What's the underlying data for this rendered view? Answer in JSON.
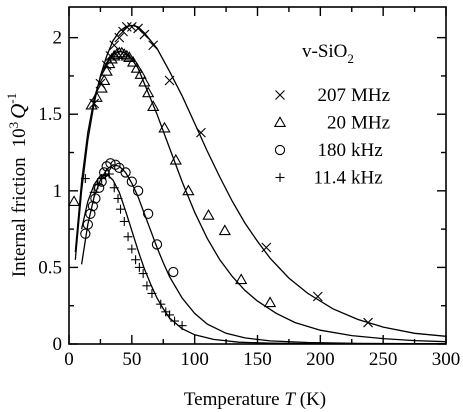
{
  "chart_data": {
    "type": "scatter",
    "xlabel_prefix": "Temperature ",
    "xlabel_var": "T",
    "xlabel_unit": " (K)",
    "ylabel_text": "Internal friction",
    "ylabel_var_prefix": "10",
    "ylabel_var_prefix_sup": "3",
    "ylabel_var": "Q",
    "ylabel_var_sup": "-1",
    "material": "v-SiO",
    "material_sub": "2",
    "xlim": [
      0,
      300
    ],
    "ylim": [
      0,
      2.2
    ],
    "x_ticks": [
      0,
      50,
      100,
      150,
      200,
      250,
      300
    ],
    "y_ticks": [
      0,
      0.5,
      1,
      1.5,
      2
    ],
    "x_tick_labels": [
      "0",
      "50",
      "100",
      "150",
      "200",
      "250",
      "300"
    ],
    "y_tick_labels": [
      "0",
      "0.5",
      "1",
      "1.5",
      "2"
    ],
    "legend_position": "right",
    "series": [
      {
        "name_value": "207",
        "name_unit": "MHz",
        "marker": "x",
        "points": [
          [
            20,
            1.57
          ],
          [
            25,
            1.7
          ],
          [
            30,
            1.82
          ],
          [
            33,
            1.88
          ],
          [
            36,
            1.95
          ],
          [
            40,
            2.0
          ],
          [
            43,
            2.04
          ],
          [
            46,
            2.07
          ],
          [
            50,
            2.07
          ],
          [
            55,
            2.06
          ],
          [
            60,
            2.02
          ],
          [
            67,
            1.95
          ],
          [
            80,
            1.72
          ],
          [
            105,
            1.38
          ],
          [
            157,
            0.63
          ],
          [
            198,
            0.31
          ],
          [
            238,
            0.14
          ]
        ],
        "curve": [
          [
            5,
            0.55
          ],
          [
            10,
            1.0
          ],
          [
            15,
            1.33
          ],
          [
            20,
            1.57
          ],
          [
            25,
            1.75
          ],
          [
            30,
            1.88
          ],
          [
            35,
            1.98
          ],
          [
            40,
            2.04
          ],
          [
            45,
            2.07
          ],
          [
            50,
            2.08
          ],
          [
            55,
            2.07
          ],
          [
            60,
            2.03
          ],
          [
            70,
            1.93
          ],
          [
            80,
            1.78
          ],
          [
            90,
            1.62
          ],
          [
            100,
            1.44
          ],
          [
            110,
            1.26
          ],
          [
            120,
            1.09
          ],
          [
            130,
            0.93
          ],
          [
            140,
            0.79
          ],
          [
            150,
            0.67
          ],
          [
            160,
            0.56
          ],
          [
            175,
            0.43
          ],
          [
            190,
            0.33
          ],
          [
            210,
            0.23
          ],
          [
            230,
            0.16
          ],
          [
            250,
            0.11
          ],
          [
            275,
            0.07
          ],
          [
            300,
            0.05
          ]
        ]
      },
      {
        "name_value": "20",
        "name_unit": "MHz",
        "marker": "triangle",
        "points": [
          [
            4,
            0.93
          ],
          [
            18,
            1.56
          ],
          [
            22,
            1.61
          ],
          [
            26,
            1.67
          ],
          [
            28,
            1.72
          ],
          [
            30,
            1.78
          ],
          [
            32,
            1.83
          ],
          [
            34,
            1.86
          ],
          [
            36,
            1.88
          ],
          [
            38,
            1.89
          ],
          [
            40,
            1.9
          ],
          [
            42,
            1.9
          ],
          [
            44,
            1.89
          ],
          [
            46,
            1.88
          ],
          [
            48,
            1.87
          ],
          [
            51,
            1.84
          ],
          [
            54,
            1.8
          ],
          [
            57,
            1.76
          ],
          [
            60,
            1.71
          ],
          [
            63,
            1.64
          ],
          [
            67,
            1.55
          ],
          [
            76,
            1.41
          ],
          [
            85,
            1.2
          ],
          [
            95,
            1.0
          ],
          [
            111,
            0.84
          ],
          [
            124,
            0.74
          ],
          [
            137,
            0.42
          ],
          [
            160,
            0.27
          ]
        ],
        "curve": [
          [
            5,
            0.6
          ],
          [
            10,
            1.06
          ],
          [
            15,
            1.38
          ],
          [
            20,
            1.6
          ],
          [
            25,
            1.74
          ],
          [
            30,
            1.83
          ],
          [
            35,
            1.89
          ],
          [
            40,
            1.91
          ],
          [
            45,
            1.9
          ],
          [
            50,
            1.86
          ],
          [
            55,
            1.8
          ],
          [
            60,
            1.7
          ],
          [
            70,
            1.5
          ],
          [
            80,
            1.28
          ],
          [
            90,
            1.06
          ],
          [
            100,
            0.86
          ],
          [
            110,
            0.69
          ],
          [
            120,
            0.55
          ],
          [
            130,
            0.44
          ],
          [
            140,
            0.35
          ],
          [
            150,
            0.28
          ],
          [
            165,
            0.2
          ],
          [
            180,
            0.14
          ],
          [
            200,
            0.09
          ],
          [
            225,
            0.055
          ],
          [
            250,
            0.035
          ],
          [
            275,
            0.022
          ],
          [
            300,
            0.015
          ]
        ]
      },
      {
        "name_value": "180",
        "name_unit": "kHz",
        "marker": "circle",
        "points": [
          [
            13,
            0.72
          ],
          [
            15,
            0.78
          ],
          [
            17,
            0.85
          ],
          [
            19,
            0.9
          ],
          [
            21,
            0.95
          ],
          [
            24,
            1.02
          ],
          [
            26,
            1.06
          ],
          [
            28,
            1.12
          ],
          [
            30,
            1.16
          ],
          [
            33,
            1.18
          ],
          [
            37,
            1.17
          ],
          [
            40,
            1.15
          ],
          [
            45,
            1.12
          ],
          [
            50,
            1.06
          ],
          [
            55,
            1.0
          ],
          [
            63,
            0.85
          ],
          [
            70,
            0.65
          ],
          [
            83,
            0.47
          ]
        ],
        "curve": [
          [
            10,
            0.52
          ],
          [
            15,
            0.78
          ],
          [
            20,
            0.96
          ],
          [
            25,
            1.07
          ],
          [
            30,
            1.14
          ],
          [
            35,
            1.17
          ],
          [
            40,
            1.16
          ],
          [
            45,
            1.12
          ],
          [
            50,
            1.05
          ],
          [
            55,
            0.96
          ],
          [
            60,
            0.85
          ],
          [
            65,
            0.74
          ],
          [
            70,
            0.63
          ],
          [
            75,
            0.53
          ],
          [
            80,
            0.44
          ],
          [
            90,
            0.3
          ],
          [
            100,
            0.2
          ],
          [
            110,
            0.13
          ],
          [
            125,
            0.07
          ],
          [
            140,
            0.04
          ],
          [
            160,
            0.02
          ],
          [
            190,
            0.01
          ],
          [
            230,
            0.004
          ],
          [
            300,
            0.001
          ]
        ]
      },
      {
        "name_value": "11.4",
        "name_unit": "kHz",
        "marker": "plus",
        "points": [
          [
            13,
            1.08
          ],
          [
            20,
            0.99
          ],
          [
            23,
            1.04
          ],
          [
            26,
            1.08
          ],
          [
            29,
            1.1
          ],
          [
            32,
            1.11
          ],
          [
            36,
            1.02
          ],
          [
            39,
            0.95
          ],
          [
            41,
            0.88
          ],
          [
            44,
            0.8
          ],
          [
            47,
            0.7
          ],
          [
            50,
            0.62
          ],
          [
            53,
            0.55
          ],
          [
            56,
            0.5
          ],
          [
            59,
            0.46
          ],
          [
            62,
            0.38
          ],
          [
            66,
            0.33
          ],
          [
            73,
            0.26
          ],
          [
            77,
            0.21
          ],
          [
            80,
            0.19
          ],
          [
            84,
            0.15
          ],
          [
            90,
            0.12
          ]
        ],
        "curve": [
          [
            10,
            0.75
          ],
          [
            15,
            0.93
          ],
          [
            20,
            1.04
          ],
          [
            25,
            1.1
          ],
          [
            30,
            1.11
          ],
          [
            35,
            1.07
          ],
          [
            40,
            0.99
          ],
          [
            45,
            0.87
          ],
          [
            50,
            0.74
          ],
          [
            55,
            0.61
          ],
          [
            60,
            0.49
          ],
          [
            65,
            0.39
          ],
          [
            70,
            0.3
          ],
          [
            75,
            0.23
          ],
          [
            80,
            0.17
          ],
          [
            90,
            0.1
          ],
          [
            100,
            0.06
          ],
          [
            115,
            0.03
          ],
          [
            135,
            0.012
          ],
          [
            160,
            0.005
          ],
          [
            200,
            0.002
          ],
          [
            300,
            0.0005
          ]
        ]
      }
    ]
  }
}
